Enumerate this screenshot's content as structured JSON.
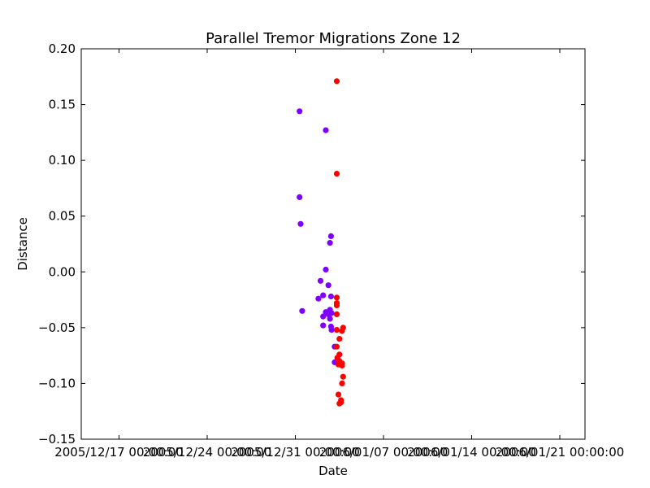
{
  "chart_data": {
    "type": "scatter",
    "title": "Parallel Tremor Migrations Zone 12",
    "xlabel": "Date",
    "ylabel": "Distance",
    "x_ticks": [
      "2005/12/17 00:00:00",
      "2005/12/24 00:00:00",
      "2005/12/31 00:00:00",
      "2006/01/07 00:00:00",
      "2006/01/14 00:00:00",
      "2006/01/21 00:00:00"
    ],
    "y_ticks": [
      "0.20",
      "0.15",
      "0.10",
      "0.05",
      "0.00",
      "−0.05",
      "−0.10",
      "−0.15"
    ],
    "xlim": [
      "2005/12/14 00:00:00",
      "2006/01/23 00:00:00"
    ],
    "ylim": [
      -0.15,
      0.2
    ],
    "grid": false,
    "series": [
      {
        "color": "#8000ff",
        "points": [
          [
            "2005/12/31 08:00:00",
            0.144
          ],
          [
            "2005/12/31 08:00:00",
            0.067
          ],
          [
            "2005/12/31 10:00:00",
            0.043
          ],
          [
            "2005/12/31 13:00:00",
            -0.035
          ],
          [
            "2006/01/02 10:00:00",
            0.127
          ],
          [
            "2006/01/02 20:00:00",
            0.032
          ],
          [
            "2006/01/02 18:00:00",
            0.026
          ],
          [
            "2006/01/02 10:00:00",
            0.002
          ],
          [
            "2006/01/02 00:00:00",
            -0.008
          ],
          [
            "2006/01/02 15:00:00",
            -0.012
          ],
          [
            "2006/01/02 05:00:00",
            -0.021
          ],
          [
            "2006/01/02 20:00:00",
            -0.022
          ],
          [
            "2006/01/01 20:00:00",
            -0.024
          ],
          [
            "2006/01/02 18:00:00",
            -0.034
          ],
          [
            "2006/01/02 10:00:00",
            -0.036
          ],
          [
            "2006/01/02 21:00:00",
            -0.037
          ],
          [
            "2006/01/02 05:00:00",
            -0.04
          ],
          [
            "2006/01/02 15:00:00",
            -0.038
          ],
          [
            "2006/01/02 18:00:00",
            -0.042
          ],
          [
            "2006/01/02 05:00:00",
            -0.048
          ],
          [
            "2006/01/02 20:00:00",
            -0.049
          ],
          [
            "2006/01/02 21:00:00",
            -0.052
          ],
          [
            "2006/01/03 03:00:00",
            -0.067
          ],
          [
            "2006/01/03 03:00:00",
            -0.081
          ]
        ]
      },
      {
        "color": "#ff0000",
        "points": [
          [
            "2006/01/03 07:00:00",
            0.171
          ],
          [
            "2006/01/03 07:00:00",
            0.088
          ],
          [
            "2006/01/03 07:00:00",
            -0.023
          ],
          [
            "2006/01/03 07:00:00",
            -0.028
          ],
          [
            "2006/01/03 07:00:00",
            -0.03
          ],
          [
            "2006/01/03 07:00:00",
            -0.038
          ],
          [
            "2006/01/03 07:00:00",
            -0.052
          ],
          [
            "2006/01/03 19:00:00",
            -0.05
          ],
          [
            "2006/01/03 17:00:00",
            -0.053
          ],
          [
            "2006/01/03 12:00:00",
            -0.06
          ],
          [
            "2006/01/03 07:00:00",
            -0.067
          ],
          [
            "2006/01/03 12:00:00",
            -0.074
          ],
          [
            "2006/01/03 08:00:00",
            -0.077
          ],
          [
            "2006/01/03 12:00:00",
            -0.08
          ],
          [
            "2006/01/03 10:00:00",
            -0.083
          ],
          [
            "2006/01/03 17:00:00",
            -0.082
          ],
          [
            "2006/01/03 17:00:00",
            -0.084
          ],
          [
            "2006/01/03 19:00:00",
            -0.094
          ],
          [
            "2006/01/03 17:00:00",
            -0.1
          ],
          [
            "2006/01/03 10:00:00",
            -0.11
          ],
          [
            "2006/01/03 15:00:00",
            -0.115
          ],
          [
            "2006/01/03 12:00:00",
            -0.118
          ],
          [
            "2006/01/03 15:00:00",
            -0.117
          ]
        ]
      }
    ]
  }
}
